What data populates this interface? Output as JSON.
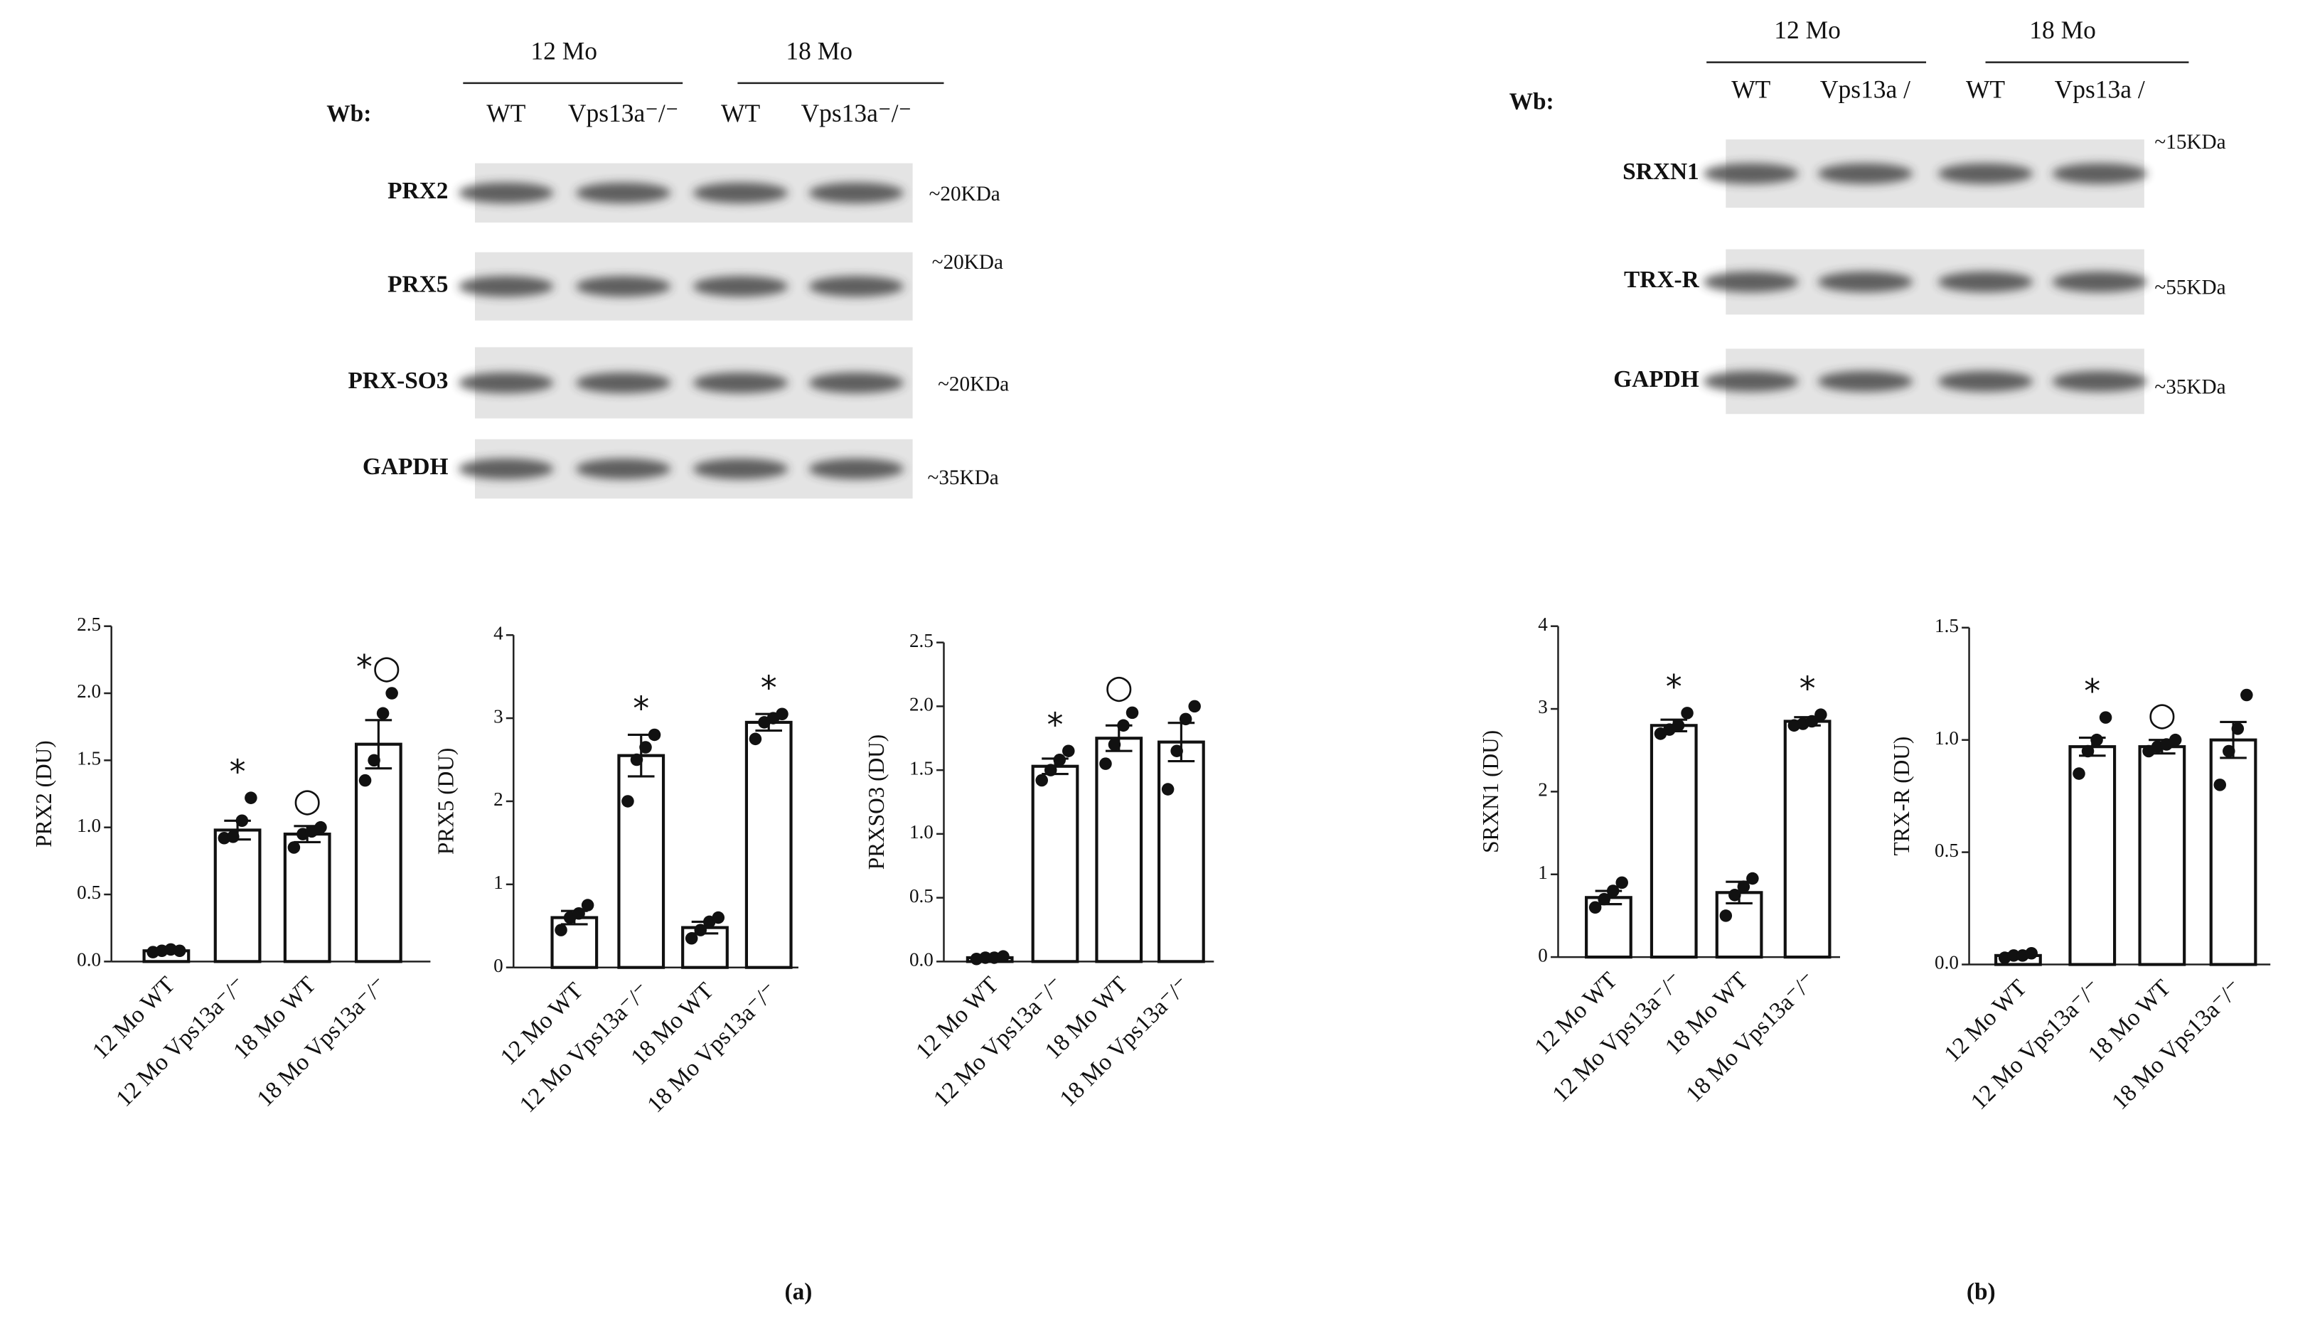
{
  "blots": [
    {
      "groups": [
        "12 Mo",
        "18 Mo"
      ],
      "wb": "Wb:",
      "lanes": [
        "WT",
        "Vps13a⁻/⁻",
        "WT",
        "Vps13a⁻/⁻"
      ],
      "rows": [
        {
          "name": "PRX2",
          "size": "~20KDa"
        },
        {
          "name": "PRX5",
          "size": "~20KDa"
        },
        {
          "name": "PRX-SO3",
          "size": "~20KDa"
        },
        {
          "name": "GAPDH",
          "size": "~35KDa"
        }
      ]
    },
    {
      "groups": [
        "12 Mo",
        "18 Mo"
      ],
      "wb": "Wb:",
      "lanes": [
        "WT",
        "Vps13a /",
        "WT",
        "Vps13a /"
      ],
      "rows": [
        {
          "name": "SRXN1",
          "size": "~15KDa"
        },
        {
          "name": "TRX-R",
          "size": "~55KDa"
        },
        {
          "name": "GAPDH",
          "size": "~35KDa"
        }
      ]
    }
  ],
  "chart_data": [
    {
      "type": "bar",
      "ylabel": "PRX2 (DU)",
      "categories": [
        "12 Mo WT",
        "12 Mo Vps13a⁻/⁻",
        "18 Mo WT",
        "18 Mo Vps13a⁻/⁻"
      ],
      "values": [
        0.08,
        0.98,
        0.95,
        1.62
      ],
      "errors": [
        0.01,
        0.07,
        0.06,
        0.18
      ],
      "points": [
        [
          0.07,
          0.08,
          0.09,
          0.08
        ],
        [
          0.92,
          0.93,
          1.05,
          1.22
        ],
        [
          0.85,
          0.95,
          0.97,
          1.0
        ],
        [
          1.35,
          1.5,
          1.85,
          2.0
        ]
      ],
      "annotations": [
        null,
        "*",
        "○",
        "*○"
      ],
      "color": "#ffffff",
      "ylim": [
        0,
        2.5
      ],
      "yticks": [
        {
          "value": 0,
          "label": "0.0"
        },
        0.5,
        {
          "value": 1,
          "label": "1.0"
        },
        1.5,
        {
          "value": 2,
          "label": "2.0"
        },
        2.5
      ]
    },
    {
      "type": "bar",
      "ylabel": "PRX5 (DU)",
      "categories": [
        "12 Mo WT",
        "12 Mo Vps13a⁻/⁻",
        "18 Mo WT",
        "18 Mo Vps13a⁻/⁻"
      ],
      "values": [
        0.6,
        2.55,
        0.48,
        2.95
      ],
      "errors": [
        0.08,
        0.25,
        0.07,
        0.1
      ],
      "points": [
        [
          0.45,
          0.6,
          0.65,
          0.75
        ],
        [
          2.0,
          2.5,
          2.65,
          2.8
        ],
        [
          0.35,
          0.45,
          0.55,
          0.6
        ],
        [
          2.75,
          2.95,
          3.0,
          3.05
        ]
      ],
      "annotations": [
        null,
        "*",
        null,
        "*"
      ],
      "color": "#ffffff",
      "ylim": [
        0,
        4
      ],
      "yticks": [
        0,
        1,
        2,
        3,
        4
      ]
    },
    {
      "type": "bar",
      "ylabel": "PRXSO3 (DU)",
      "categories": [
        "12 Mo WT",
        "12 Mo Vps13a⁻/⁻",
        "18 Mo WT",
        "18 Mo Vps13a⁻/⁻"
      ],
      "values": [
        0.03,
        1.53,
        1.75,
        1.72
      ],
      "errors": [
        0.01,
        0.06,
        0.1,
        0.15
      ],
      "points": [
        [
          0.02,
          0.03,
          0.03,
          0.04
        ],
        [
          1.42,
          1.5,
          1.58,
          1.65
        ],
        [
          1.55,
          1.7,
          1.85,
          1.95
        ],
        [
          1.35,
          1.65,
          1.9,
          2.0
        ]
      ],
      "annotations": [
        null,
        "*",
        "○",
        null
      ],
      "color": "#ffffff",
      "ylim": [
        0,
        2.5
      ],
      "yticks": [
        {
          "value": 0,
          "label": "0.0"
        },
        0.5,
        {
          "value": 1,
          "label": "1.0"
        },
        1.5,
        {
          "value": 2,
          "label": "2.0"
        },
        2.5
      ]
    },
    {
      "type": "bar",
      "ylabel": "SRXN1 (DU)",
      "categories": [
        "12 Mo WT",
        "12 Mo Vps13a⁻/⁻",
        "18 Mo WT",
        "18 Mo Vps13a⁻/⁻"
      ],
      "values": [
        0.72,
        2.8,
        0.78,
        2.85
      ],
      "errors": [
        0.08,
        0.07,
        0.13,
        0.05
      ],
      "points": [
        [
          0.6,
          0.7,
          0.8,
          0.9
        ],
        [
          2.7,
          2.75,
          2.8,
          2.95
        ],
        [
          0.5,
          0.75,
          0.85,
          0.95
        ],
        [
          2.8,
          2.82,
          2.85,
          2.93
        ]
      ],
      "annotations": [
        null,
        "*",
        null,
        "*"
      ],
      "color": "#ffffff",
      "ylim": [
        0,
        4
      ],
      "yticks": [
        0,
        1,
        2,
        3,
        4
      ]
    },
    {
      "type": "bar",
      "ylabel": "TRX-R (DU)",
      "categories": [
        "12 Mo WT",
        "12 Mo Vps13a⁻/⁻",
        "18 Mo WT",
        "18 Mo Vps13a⁻/⁻"
      ],
      "values": [
        0.04,
        0.97,
        0.97,
        1.0
      ],
      "errors": [
        0.01,
        0.04,
        0.03,
        0.08
      ],
      "points": [
        [
          0.03,
          0.04,
          0.04,
          0.05
        ],
        [
          0.85,
          0.95,
          1.0,
          1.1
        ],
        [
          0.95,
          0.97,
          0.98,
          1.0
        ],
        [
          0.8,
          0.95,
          1.05,
          1.2
        ]
      ],
      "annotations": [
        null,
        "*",
        "○",
        null
      ],
      "color": "#ffffff",
      "ylim": [
        0,
        1.5
      ],
      "yticks": [
        {
          "value": 0,
          "label": "0.0"
        },
        0.5,
        {
          "value": 1,
          "label": "1.0"
        },
        1.5
      ]
    }
  ],
  "panel_labels": [
    "(a)",
    "(b)"
  ]
}
